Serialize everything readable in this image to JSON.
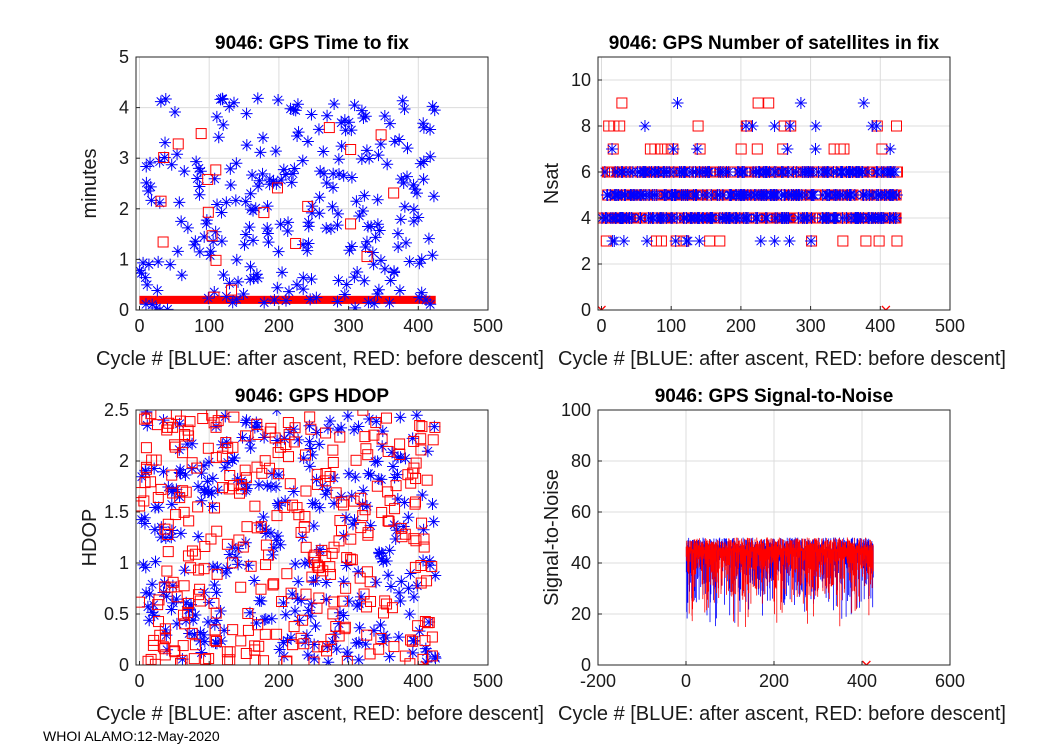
{
  "footer": "WHOI ALAMO:12-May-2020",
  "colors": {
    "after_ascent": "#0000ff",
    "before_descent": "#ff0000",
    "grid": "#dcdcdc",
    "axis": "#262626"
  },
  "chart_data": [
    {
      "id": "time_to_fix",
      "type": "scatter",
      "title": "9046: GPS Time to fix",
      "xlabel": "Cycle #  [BLUE: after ascent, RED: before descent]",
      "ylabel": "minutes",
      "xlim": [
        -5,
        500
      ],
      "ylim": [
        0,
        5
      ],
      "xticks": [
        0,
        100,
        200,
        300,
        400,
        500
      ],
      "yticks": [
        0,
        1,
        2,
        3,
        4,
        5
      ],
      "grid": true,
      "band": {
        "x": [
          0,
          425
        ],
        "y": [
          0.12,
          0.28
        ],
        "color": "#ff0000"
      },
      "series": [
        {
          "name": "after ascent",
          "marker": "asterisk",
          "color": "#0000ff",
          "seed": 11,
          "n": 260,
          "xr": [
            0,
            425
          ],
          "yr": [
            0.0,
            4.2
          ]
        },
        {
          "name": "before descent",
          "marker": "square",
          "color": "#ff0000",
          "seed": 23,
          "n": 22,
          "xr": [
            0,
            425
          ],
          "yr": [
            0.1,
            3.85
          ]
        }
      ]
    },
    {
      "id": "nsat",
      "type": "scatter",
      "title": "9046: GPS Number of satellites in fix",
      "xlabel": "Cycle #  [BLUE: after ascent, RED: before descent]",
      "ylabel": "Nsat",
      "xlim": [
        -5,
        500
      ],
      "ylim": [
        0,
        11
      ],
      "xticks": [
        0,
        100,
        200,
        300,
        400,
        500
      ],
      "yticks": [
        0,
        2,
        4,
        6,
        8,
        10
      ],
      "grid": true,
      "levels": [
        {
          "value": 3,
          "n_blue": 12,
          "n_red": 12
        },
        {
          "value": 4,
          "n_blue": 140,
          "n_red": 140
        },
        {
          "value": 5,
          "n_blue": 140,
          "n_red": 140
        },
        {
          "value": 6,
          "n_blue": 120,
          "n_red": 120
        },
        {
          "value": 7,
          "n_blue": 6,
          "n_red": 14
        },
        {
          "value": 8,
          "n_blue": 8,
          "n_red": 10
        },
        {
          "value": 9,
          "n_blue": 3,
          "n_red": 3
        }
      ],
      "xr": [
        0,
        425
      ],
      "crosses": [
        {
          "x": 0,
          "y": 0
        },
        {
          "x": 408,
          "y": 0
        }
      ],
      "series": [
        {
          "name": "after ascent",
          "marker": "asterisk",
          "color": "#0000ff",
          "seed": 37
        },
        {
          "name": "before descent",
          "marker": "square",
          "color": "#ff0000",
          "seed": 41
        }
      ]
    },
    {
      "id": "hdop",
      "type": "scatter",
      "title": "9046: GPS HDOP",
      "xlabel": "Cycle #  [BLUE: after ascent, RED: before descent]",
      "ylabel": "HDOP",
      "xlim": [
        -5,
        500
      ],
      "ylim": [
        0,
        2.5
      ],
      "xticks": [
        0,
        100,
        200,
        300,
        400,
        500
      ],
      "ytick_labels": [
        "0",
        "0.5",
        "1",
        "1.5",
        "2",
        "2.5"
      ],
      "yticks": [
        0,
        0.5,
        1,
        1.5,
        2,
        2.5
      ],
      "grid": true,
      "crosses": [
        {
          "x": 410,
          "y": 0
        }
      ],
      "series": [
        {
          "name": "after ascent",
          "marker": "asterisk",
          "color": "#0000ff",
          "seed": 53,
          "n": 330,
          "xr": [
            0,
            425
          ],
          "yr": [
            0.0,
            2.5
          ]
        },
        {
          "name": "before descent",
          "marker": "square",
          "color": "#ff0000",
          "seed": 67,
          "n": 330,
          "xr": [
            0,
            425
          ],
          "yr": [
            0.0,
            2.5
          ]
        }
      ]
    },
    {
      "id": "snr",
      "type": "line",
      "title": "9046: GPS Signal-to-Noise",
      "xlabel": "Cycle #  [BLUE: after ascent, RED: before descent]",
      "ylabel": "Signal-to-Noise",
      "xlim": [
        -200,
        600
      ],
      "ylim": [
        0,
        100
      ],
      "xticks": [
        -200,
        0,
        200,
        400,
        600
      ],
      "yticks": [
        0,
        20,
        40,
        60,
        80,
        100
      ],
      "grid": true,
      "xr": [
        0,
        425
      ],
      "range_top": [
        45,
        50
      ],
      "range_bottom": [
        10,
        45
      ],
      "crosses": [
        {
          "x": 410,
          "y": 0
        }
      ],
      "series": [
        {
          "name": "after ascent",
          "color": "#0000ff",
          "seed": 79
        },
        {
          "name": "before descent",
          "color": "#ff0000",
          "seed": 83
        }
      ]
    }
  ]
}
